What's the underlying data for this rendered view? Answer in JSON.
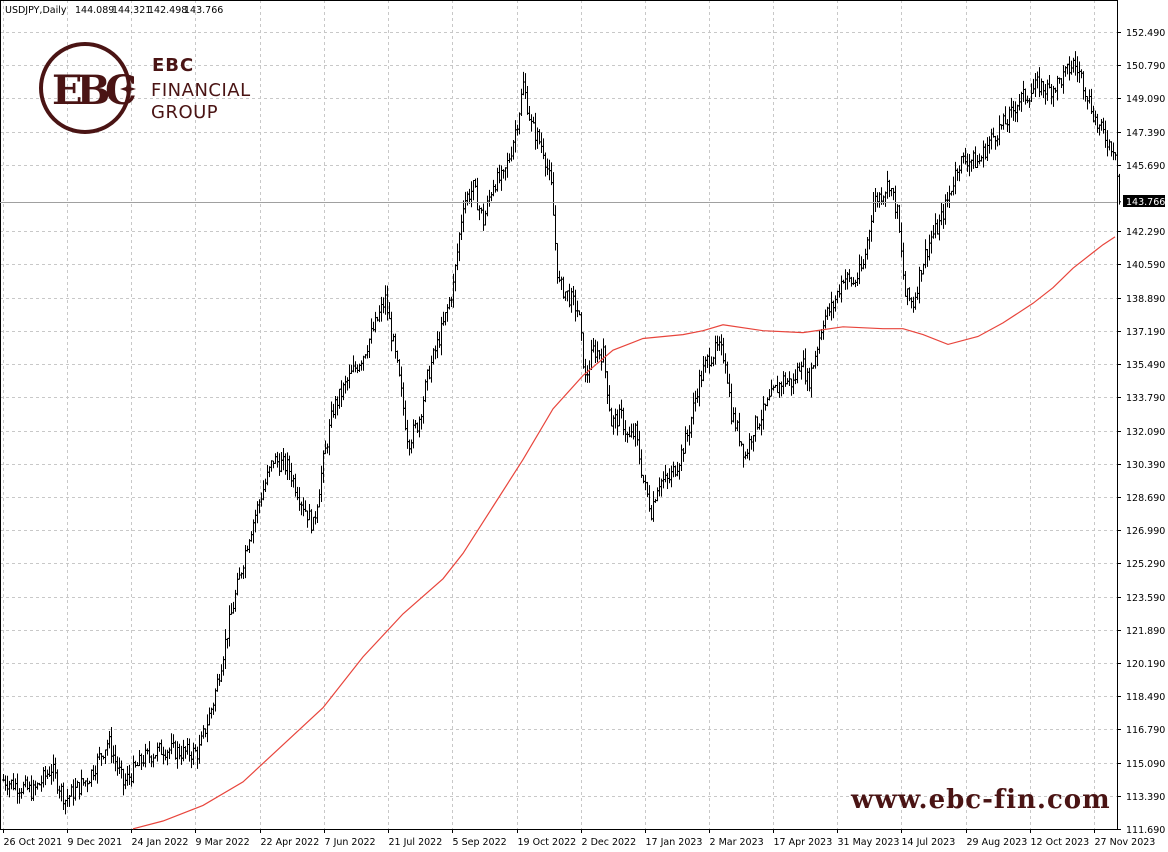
{
  "header": {
    "symbol": "USDJPY,Daily",
    "open": "144.089",
    "high": "144.321",
    "low": "142.498",
    "close": "143.766"
  },
  "logo": {
    "line1": "EBC",
    "line2": "FINANCIAL",
    "line3": "GROUP",
    "emblem_letters": "EBC"
  },
  "watermark_url": "www.ebc-fin.com",
  "current_price_label": "143.766",
  "colors": {
    "candles": "#000000",
    "moving_average": "#e8453c",
    "grid": "#c8c8c8",
    "logo": "#4a1414",
    "price_tag_bg": "#000000"
  },
  "chart_data": {
    "type": "line",
    "title": "USDJPY,Daily",
    "xlabel": "",
    "ylabel": "",
    "ylim": [
      111.69,
      153.4
    ],
    "y_ticks": [
      "152.490",
      "150.790",
      "149.090",
      "147.390",
      "145.690",
      "143.766",
      "142.290",
      "140.590",
      "138.890",
      "137.190",
      "135.490",
      "133.790",
      "132.090",
      "130.390",
      "128.690",
      "126.990",
      "125.290",
      "123.590",
      "121.890",
      "120.190",
      "118.490",
      "116.790",
      "115.090",
      "113.390",
      "111.690"
    ],
    "x_ticks": [
      "26 Oct 2021",
      "9 Dec 2021",
      "24 Jan 2022",
      "9 Mar 2022",
      "22 Apr 2022",
      "7 Jun 2022",
      "21 Jul 2022",
      "5 Sep 2022",
      "19 Oct 2022",
      "2 Dec 2022",
      "17 Jan 2023",
      "2 Mar 2023",
      "17 Apr 2023",
      "31 May 2023",
      "14 Jul 2023",
      "29 Aug 2023",
      "12 Oct 2023",
      "27 Nov 2023"
    ],
    "grid": true,
    "series": [
      {
        "kind": "price",
        "points": [
          [
            0,
            114.2
          ],
          [
            30,
            113.6
          ],
          [
            48,
            114.8
          ],
          [
            62,
            113.2
          ],
          [
            85,
            114.3
          ],
          [
            105,
            116.2
          ],
          [
            120,
            114.0
          ],
          [
            140,
            115.3
          ],
          [
            160,
            115.8
          ],
          [
            180,
            115.6
          ],
          [
            195,
            115.6
          ],
          [
            210,
            118.2
          ],
          [
            225,
            122.0
          ],
          [
            245,
            126.6
          ],
          [
            258,
            128.8
          ],
          [
            270,
            130.6
          ],
          [
            285,
            130.2
          ],
          [
            298,
            128.5
          ],
          [
            310,
            127.2
          ],
          [
            320,
            130.5
          ],
          [
            330,
            133.2
          ],
          [
            345,
            134.7
          ],
          [
            360,
            136.0
          ],
          [
            372,
            137.5
          ],
          [
            382,
            138.8
          ],
          [
            395,
            135.0
          ],
          [
            405,
            131.5
          ],
          [
            415,
            132.5
          ],
          [
            425,
            135.0
          ],
          [
            440,
            137.5
          ],
          [
            450,
            139.5
          ],
          [
            460,
            143.8
          ],
          [
            470,
            144.5
          ],
          [
            480,
            142.8
          ],
          [
            490,
            144.8
          ],
          [
            500,
            145.0
          ],
          [
            508,
            146.5
          ],
          [
            515,
            148.2
          ],
          [
            520,
            149.8
          ],
          [
            528,
            147.7
          ],
          [
            540,
            146.5
          ],
          [
            548,
            144.5
          ],
          [
            555,
            139.6
          ],
          [
            565,
            139.0
          ],
          [
            575,
            138.2
          ],
          [
            582,
            134.7
          ],
          [
            590,
            136.2
          ],
          [
            600,
            136.0
          ],
          [
            608,
            132.5
          ],
          [
            618,
            132.8
          ],
          [
            625,
            131.6
          ],
          [
            632,
            132.0
          ],
          [
            640,
            129.5
          ],
          [
            648,
            128.0
          ],
          [
            655,
            129.5
          ],
          [
            665,
            129.5
          ],
          [
            675,
            130.5
          ],
          [
            685,
            132.0
          ],
          [
            695,
            134.5
          ],
          [
            705,
            135.8
          ],
          [
            715,
            136.3
          ],
          [
            722,
            135.8
          ],
          [
            728,
            133.0
          ],
          [
            735,
            132.0
          ],
          [
            742,
            130.8
          ],
          [
            750,
            132.2
          ],
          [
            760,
            133.0
          ],
          [
            770,
            134.0
          ],
          [
            780,
            134.7
          ],
          [
            790,
            134.5
          ],
          [
            798,
            135.8
          ],
          [
            805,
            134.5
          ],
          [
            812,
            136.0
          ],
          [
            820,
            137.8
          ],
          [
            830,
            138.5
          ],
          [
            840,
            140.0
          ],
          [
            850,
            139.6
          ],
          [
            860,
            140.5
          ],
          [
            870,
            143.8
          ],
          [
            878,
            144.2
          ],
          [
            886,
            144.8
          ],
          [
            894,
            143.2
          ],
          [
            902,
            139.0
          ],
          [
            910,
            138.6
          ],
          [
            918,
            140.5
          ],
          [
            928,
            142.0
          ],
          [
            935,
            142.5
          ],
          [
            945,
            144.0
          ],
          [
            955,
            145.8
          ],
          [
            965,
            146.0
          ],
          [
            975,
            145.8
          ],
          [
            985,
            146.8
          ],
          [
            995,
            147.5
          ],
          [
            1005,
            148.0
          ],
          [
            1015,
            149.0
          ],
          [
            1025,
            149.3
          ],
          [
            1035,
            149.8
          ],
          [
            1045,
            149.5
          ],
          [
            1055,
            149.9
          ],
          [
            1062,
            150.3
          ],
          [
            1070,
            150.9
          ],
          [
            1078,
            150.2
          ],
          [
            1086,
            149.0
          ],
          [
            1094,
            147.7
          ],
          [
            1100,
            147.3
          ],
          [
            1106,
            146.8
          ],
          [
            1112,
            146.5
          ],
          [
            1116,
            143.8
          ]
        ]
      },
      {
        "kind": "moving_average",
        "points": [
          [
            130,
            111.7
          ],
          [
            160,
            112.1
          ],
          [
            200,
            112.9
          ],
          [
            240,
            114.1
          ],
          [
            280,
            116.0
          ],
          [
            320,
            117.9
          ],
          [
            360,
            120.5
          ],
          [
            400,
            122.7
          ],
          [
            440,
            124.5
          ],
          [
            460,
            125.8
          ],
          [
            490,
            128.2
          ],
          [
            520,
            130.6
          ],
          [
            550,
            133.2
          ],
          [
            580,
            134.9
          ],
          [
            610,
            136.2
          ],
          [
            640,
            136.8
          ],
          [
            680,
            137.0
          ],
          [
            700,
            137.2
          ],
          [
            720,
            137.5
          ],
          [
            760,
            137.2
          ],
          [
            800,
            137.1
          ],
          [
            840,
            137.4
          ],
          [
            880,
            137.3
          ],
          [
            900,
            137.3
          ],
          [
            920,
            137.0
          ],
          [
            945,
            136.5
          ],
          [
            975,
            136.9
          ],
          [
            1000,
            137.6
          ],
          [
            1030,
            138.6
          ],
          [
            1050,
            139.4
          ],
          [
            1070,
            140.4
          ],
          [
            1090,
            141.2
          ],
          [
            1100,
            141.6
          ],
          [
            1112,
            142.0
          ]
        ]
      }
    ]
  }
}
